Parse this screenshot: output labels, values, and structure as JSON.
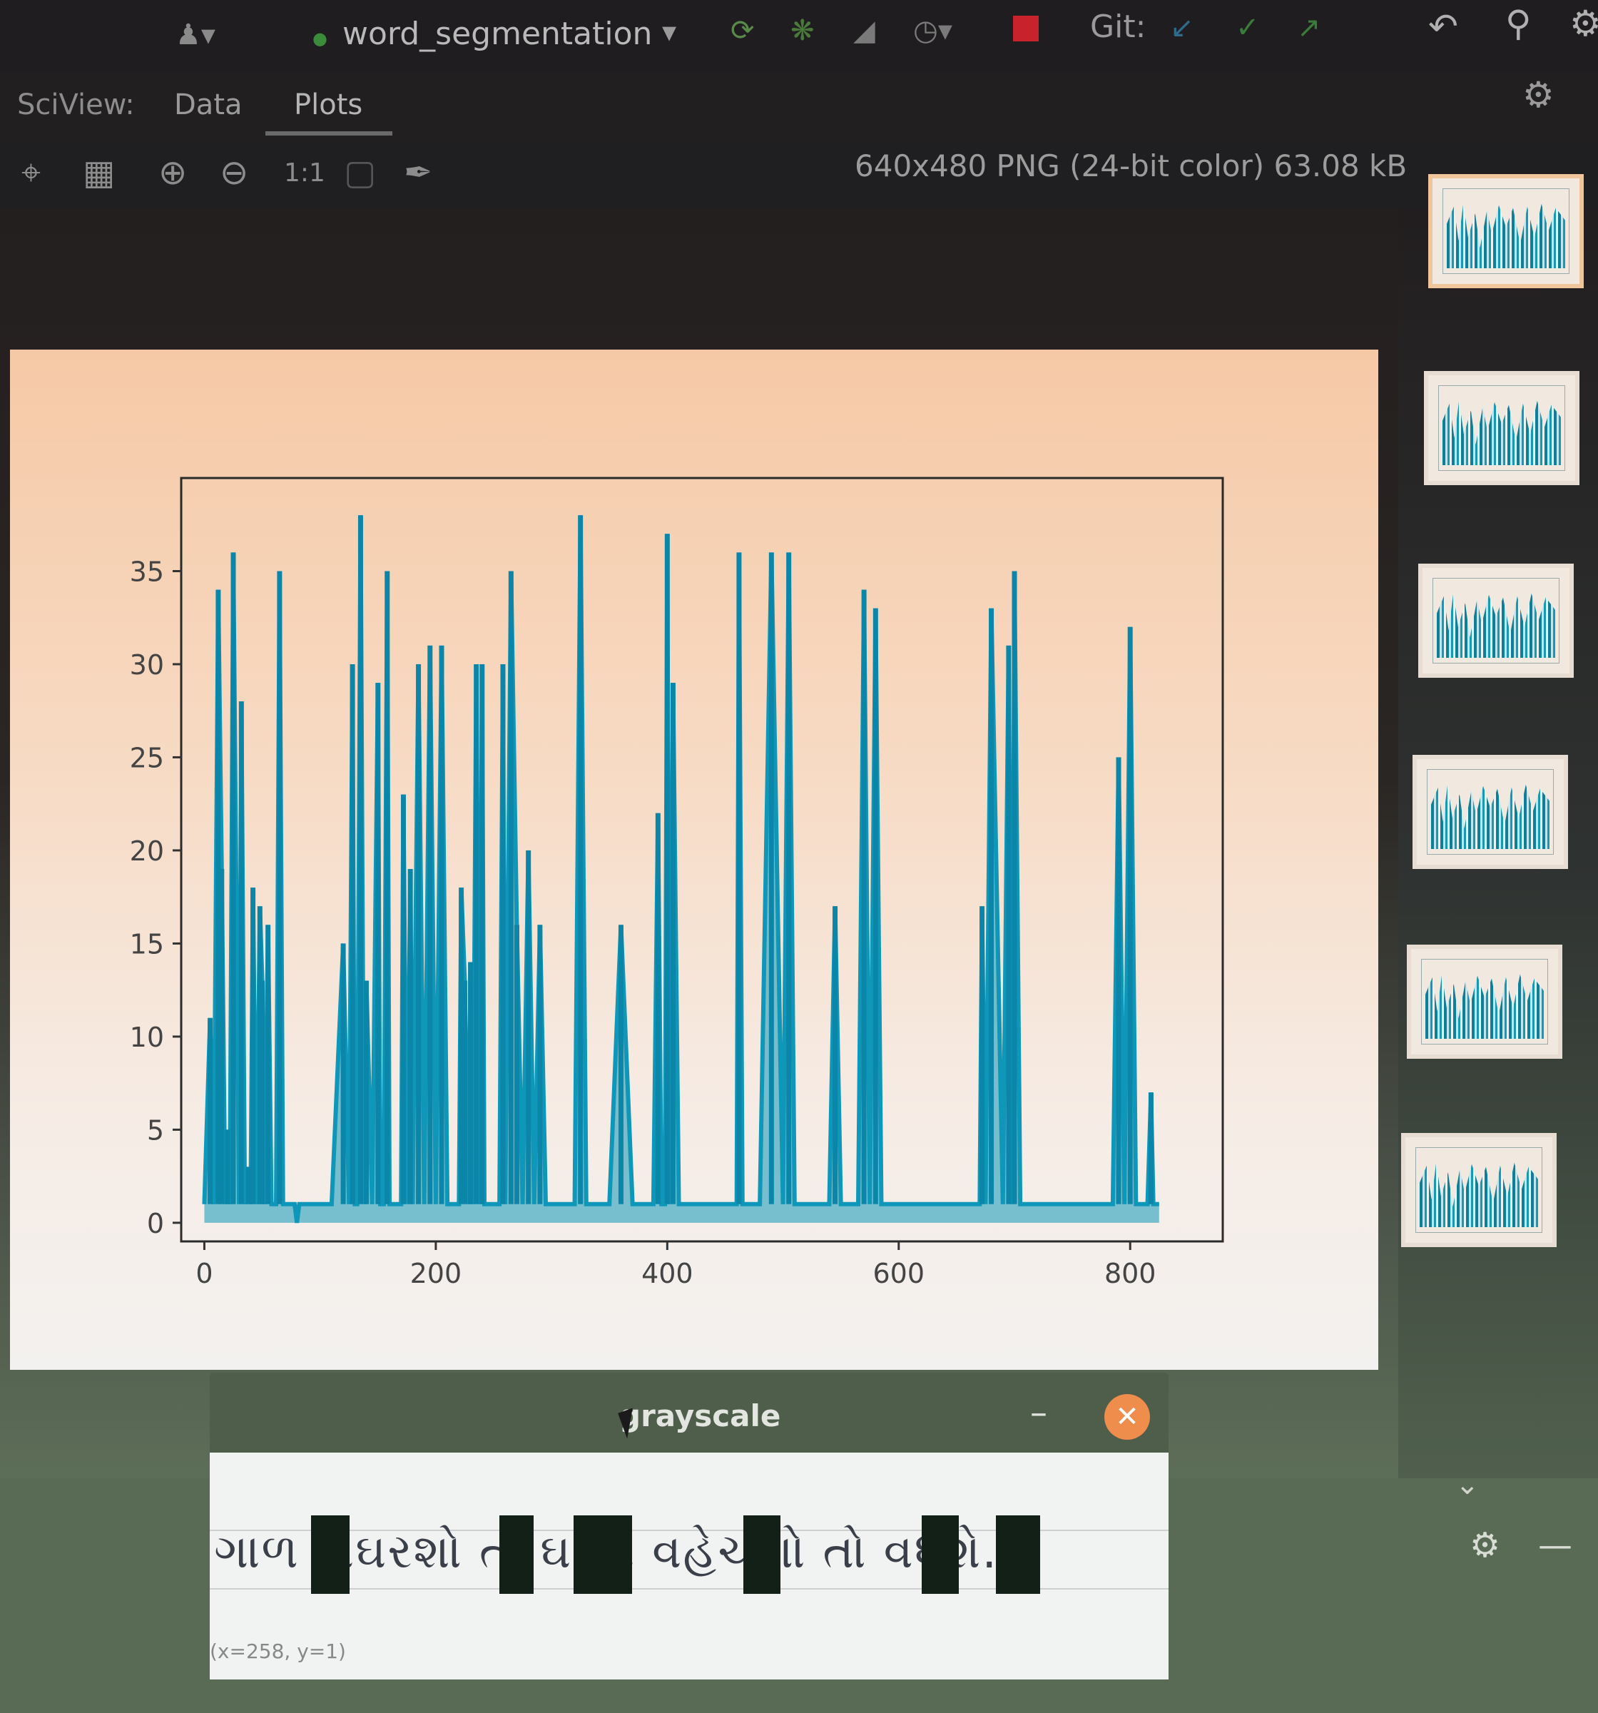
{
  "toolbar": {
    "project": "word_segmentation",
    "git_label": "Git:"
  },
  "sciview": {
    "label": "SciView:",
    "tabs": [
      {
        "label": "Data",
        "active": false
      },
      {
        "label": "Plots",
        "active": true
      }
    ]
  },
  "image_toolbar": {
    "zoom_actual_label": "1:1",
    "image_info": "640x480 PNG (24-bit color) 63.08 kB"
  },
  "chart_data": {
    "type": "line",
    "xlim": [
      -20,
      880
    ],
    "ylim": [
      -1,
      40
    ],
    "xticks": [
      0,
      200,
      400,
      600,
      800
    ],
    "yticks": [
      0,
      5,
      10,
      15,
      20,
      25,
      30,
      35
    ],
    "color": "#0e97b8",
    "series": [
      {
        "x": [
          0,
          5,
          8,
          12,
          15,
          18,
          20,
          22,
          25,
          30,
          32,
          35,
          38,
          40,
          42,
          45,
          48,
          50,
          52,
          55,
          58,
          60,
          62,
          65,
          68,
          70,
          72,
          75,
          78,
          80,
          82,
          85,
          88,
          90,
          95,
          100,
          110,
          120,
          125,
          128,
          130,
          132,
          135,
          138,
          140,
          145,
          150,
          152,
          155,
          158,
          160,
          165,
          168,
          170,
          172,
          175,
          178,
          180,
          185,
          190,
          195,
          200,
          205,
          210,
          215,
          220,
          222,
          225,
          228,
          230,
          232,
          235,
          238,
          240,
          242,
          245,
          248,
          250,
          252,
          255,
          258,
          260,
          265,
          270,
          275,
          280,
          285,
          290,
          295,
          300,
          305,
          310,
          312,
          315,
          318,
          320,
          325,
          330,
          340,
          350,
          360,
          370,
          375,
          380,
          385,
          388,
          392,
          395,
          398,
          400,
          402,
          405,
          410,
          420,
          430,
          440,
          450,
          455,
          458,
          460,
          462,
          465,
          470,
          475,
          480,
          490,
          500,
          505,
          510,
          515,
          518,
          520,
          525,
          530,
          535,
          540,
          545,
          550,
          552,
          555,
          560,
          565,
          570,
          575,
          580,
          585,
          590,
          595,
          600,
          605,
          610,
          615,
          620,
          625,
          630,
          640,
          650,
          660,
          665,
          668,
          670,
          672,
          675,
          680,
          690,
          695,
          698,
          700,
          705,
          710,
          720,
          730,
          740,
          745,
          750,
          752,
          755,
          760,
          765,
          770,
          775,
          778,
          780,
          785,
          790,
          795,
          800,
          805,
          810,
          815,
          818,
          820,
          825
        ],
        "y": [
          1,
          11,
          1,
          34,
          19,
          1,
          5,
          1,
          36,
          1,
          28,
          1,
          3,
          1,
          18,
          1,
          17,
          13,
          1,
          16,
          1,
          1,
          1,
          35,
          1,
          1,
          1,
          1,
          1,
          0,
          1,
          1,
          1,
          1,
          1,
          1,
          1,
          15,
          1,
          30,
          1,
          1,
          38,
          1,
          13,
          1,
          29,
          1,
          1,
          35,
          1,
          1,
          1,
          1,
          23,
          1,
          19,
          1,
          30,
          1,
          31,
          1,
          31,
          1,
          1,
          1,
          18,
          13,
          1,
          14,
          1,
          30,
          1,
          30,
          1,
          1,
          1,
          1,
          1,
          1,
          30,
          1,
          35,
          16,
          1,
          20,
          1,
          16,
          1,
          1,
          1,
          1,
          1,
          1,
          1,
          1,
          38,
          1,
          1,
          1,
          16,
          1,
          1,
          1,
          1,
          1,
          22,
          1,
          1,
          37,
          1,
          29,
          1,
          1,
          1,
          1,
          1,
          1,
          1,
          1,
          36,
          1,
          1,
          1,
          1,
          36,
          1,
          36,
          1,
          1,
          1,
          1,
          1,
          1,
          1,
          1,
          17,
          1,
          1,
          1,
          1,
          1,
          34,
          1,
          33,
          1,
          1,
          1,
          1,
          1,
          1,
          1,
          1,
          1,
          1,
          1,
          1,
          1,
          1,
          1,
          1,
          17,
          1,
          33,
          1,
          31,
          1,
          35,
          1,
          1,
          1,
          1,
          1,
          1,
          1,
          1,
          1,
          1,
          1,
          1,
          1,
          1,
          1,
          1,
          25,
          1,
          32,
          1,
          1,
          1,
          7,
          1,
          1
        ]
      }
    ]
  },
  "thumbnails": [
    {
      "selected": true
    },
    {
      "selected": false
    },
    {
      "selected": false
    },
    {
      "selected": false
    },
    {
      "selected": false
    },
    {
      "selected": false
    }
  ],
  "grayscale_window": {
    "title": "grayscale",
    "text": "ગાળ સંઘરશો તો ઘરશે વહેચશો તો વધશે.",
    "coords": "(x=258, y=1)"
  }
}
